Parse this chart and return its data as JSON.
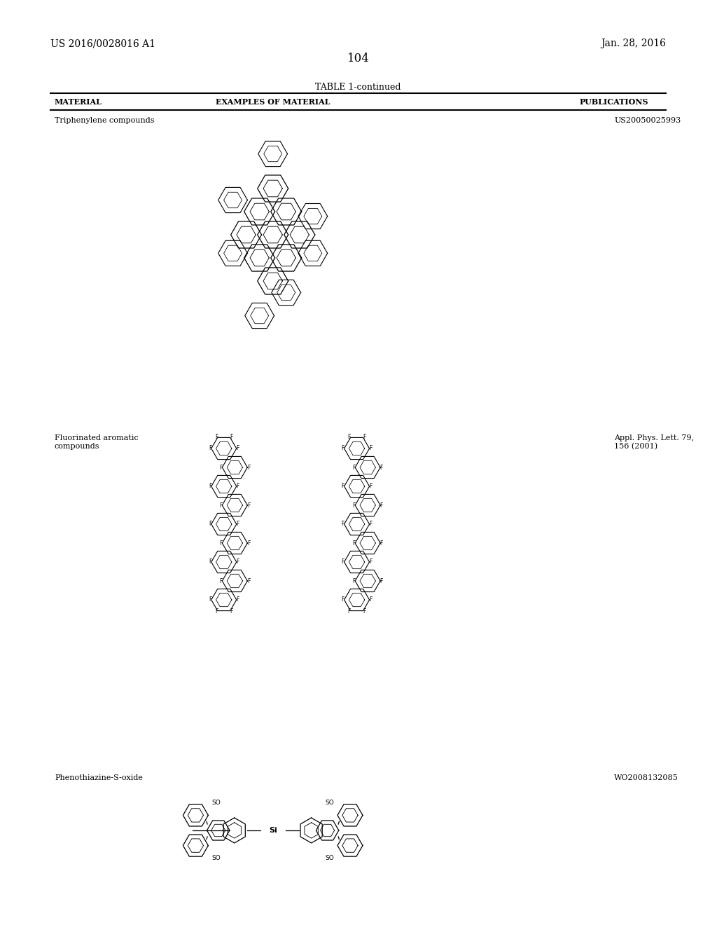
{
  "page_number": "104",
  "left_header": "US 2016/0028016 A1",
  "right_header": "Jan. 28, 2016",
  "table_title": "TABLE 1-continued",
  "col1_header": "MATERIAL",
  "col2_header": "EXAMPLES OF MATERIAL",
  "col3_header": "PUBLICATIONS",
  "row1_material": "Triphenylene compounds",
  "row1_publication": "US20050025993",
  "row2_material": "Fluorinated aromatic\ncompounds",
  "row2_publication": "Appl. Phys. Lett. 79,\n156 (2001)",
  "row3_material": "Phenothiazine-S-oxide",
  "row3_publication": "WO2008132085",
  "bg_color": "#ffffff",
  "text_color": "#000000",
  "line_color": "#000000"
}
